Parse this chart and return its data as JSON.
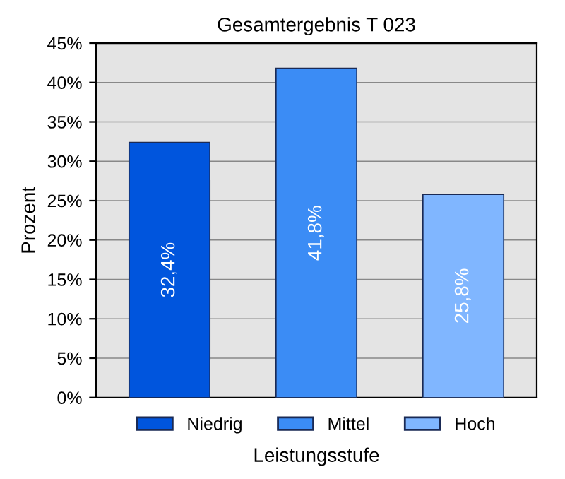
{
  "chart_data": {
    "type": "bar",
    "title": "Gesamtergebnis T 023",
    "xlabel": "Leistungsstufe",
    "ylabel": "Prozent",
    "categories": [
      null,
      null,
      null
    ],
    "stacked": true,
    "series": [
      {
        "name": "Niedrig",
        "color": "#0055dd",
        "values": [
          32.4,
          null,
          null
        ],
        "value_labels": [
          "32,4%",
          null,
          null
        ]
      },
      {
        "name": "Mittel",
        "color": "#3b8cf5",
        "values": [
          null,
          41.8,
          null
        ],
        "value_labels": [
          null,
          "41,8%",
          null
        ]
      },
      {
        "name": "Hoch",
        "color": "#80b6ff",
        "values": [
          null,
          null,
          25.8
        ],
        "value_labels": [
          null,
          null,
          "25,8%"
        ]
      }
    ],
    "ylim": [
      0,
      45
    ],
    "yticks": [
      {
        "value": 0,
        "label": "0%"
      },
      {
        "value": 5,
        "label": "5%"
      },
      {
        "value": 10,
        "label": "10%"
      },
      {
        "value": 15,
        "label": "15%"
      },
      {
        "value": 20,
        "label": "20%"
      },
      {
        "value": 25,
        "label": "25%"
      },
      {
        "value": 30,
        "label": "30%"
      },
      {
        "value": 35,
        "label": "35%"
      },
      {
        "value": 40,
        "label": "40%"
      },
      {
        "value": 45,
        "label": "45%"
      }
    ],
    "grid": "y",
    "legend": "bottom"
  }
}
